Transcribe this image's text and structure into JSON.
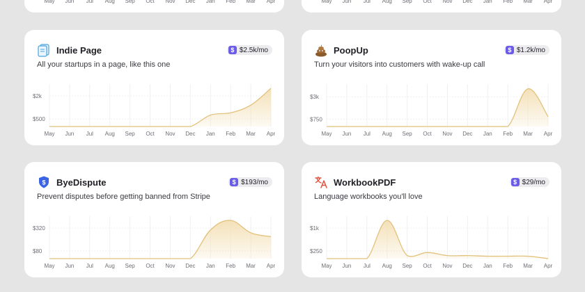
{
  "months": [
    "May",
    "Jun",
    "Jul",
    "Aug",
    "Sep",
    "Oct",
    "Nov",
    "Dec",
    "Jan",
    "Feb",
    "Mar",
    "Apr"
  ],
  "colors": {
    "area": "#f3dfb4",
    "line": "#e2c17b",
    "badge_icon": "#6b5ce7"
  },
  "cards": [
    {
      "id": "indie-page",
      "name": "Indie Page",
      "description": "All your startups in a page, like this one",
      "mrr": "$2.5k/mo",
      "icon": "page-icon",
      "chart_data": {
        "type": "area",
        "x": [
          "May",
          "Jun",
          "Jul",
          "Aug",
          "Sep",
          "Oct",
          "Nov",
          "Dec",
          "Jan",
          "Feb",
          "Mar",
          "Apr"
        ],
        "ytick_labels": [
          "$2k",
          "$500"
        ],
        "ytick_values": [
          2000,
          500
        ],
        "ylim": [
          0,
          2500
        ],
        "values": [
          0,
          0,
          0,
          0,
          0,
          0,
          0,
          0,
          750,
          900,
          1400,
          2500
        ]
      }
    },
    {
      "id": "poopup",
      "name": "PoopUp",
      "description": "Turn your visitors into customers with wake-up call",
      "mrr": "$1.2k/mo",
      "icon": "poop-icon",
      "chart_data": {
        "type": "area",
        "x": [
          "May",
          "Jun",
          "Jul",
          "Aug",
          "Sep",
          "Oct",
          "Nov",
          "Dec",
          "Jan",
          "Feb",
          "Mar",
          "Apr"
        ],
        "ytick_labels": [
          "$3k",
          "$750"
        ],
        "ytick_values": [
          3000,
          750
        ],
        "ylim": [
          0,
          3850
        ],
        "values": [
          0,
          0,
          0,
          0,
          0,
          0,
          0,
          0,
          0,
          0,
          3800,
          1000
        ]
      }
    },
    {
      "id": "byedispute",
      "name": "ByeDispute",
      "description": "Prevent disputes before getting banned from Stripe",
      "mrr": "$193/mo",
      "icon": "shield-dollar-icon",
      "chart_data": {
        "type": "area",
        "x": [
          "May",
          "Jun",
          "Jul",
          "Aug",
          "Sep",
          "Oct",
          "Nov",
          "Dec",
          "Jan",
          "Feb",
          "Mar",
          "Apr"
        ],
        "ytick_labels": [
          "$320",
          "$80"
        ],
        "ytick_values": [
          320,
          80
        ],
        "ylim": [
          0,
          400
        ],
        "values": [
          0,
          0,
          0,
          0,
          0,
          0,
          0,
          0,
          300,
          400,
          270,
          230
        ]
      }
    },
    {
      "id": "workbookpdf",
      "name": "WorkbookPDF",
      "description": "Language workbooks you'll love",
      "mrr": "$29/mo",
      "icon": "translate-icon",
      "chart_data": {
        "type": "area",
        "x": [
          "May",
          "Jun",
          "Jul",
          "Aug",
          "Sep",
          "Oct",
          "Nov",
          "Dec",
          "Jan",
          "Feb",
          "Mar",
          "Apr"
        ],
        "ytick_labels": [
          "$1k",
          "$250"
        ],
        "ytick_values": [
          1000,
          250
        ],
        "ylim": [
          0,
          1250
        ],
        "values": [
          0,
          0,
          0,
          1250,
          100,
          200,
          100,
          100,
          80,
          80,
          80,
          0
        ]
      }
    }
  ]
}
